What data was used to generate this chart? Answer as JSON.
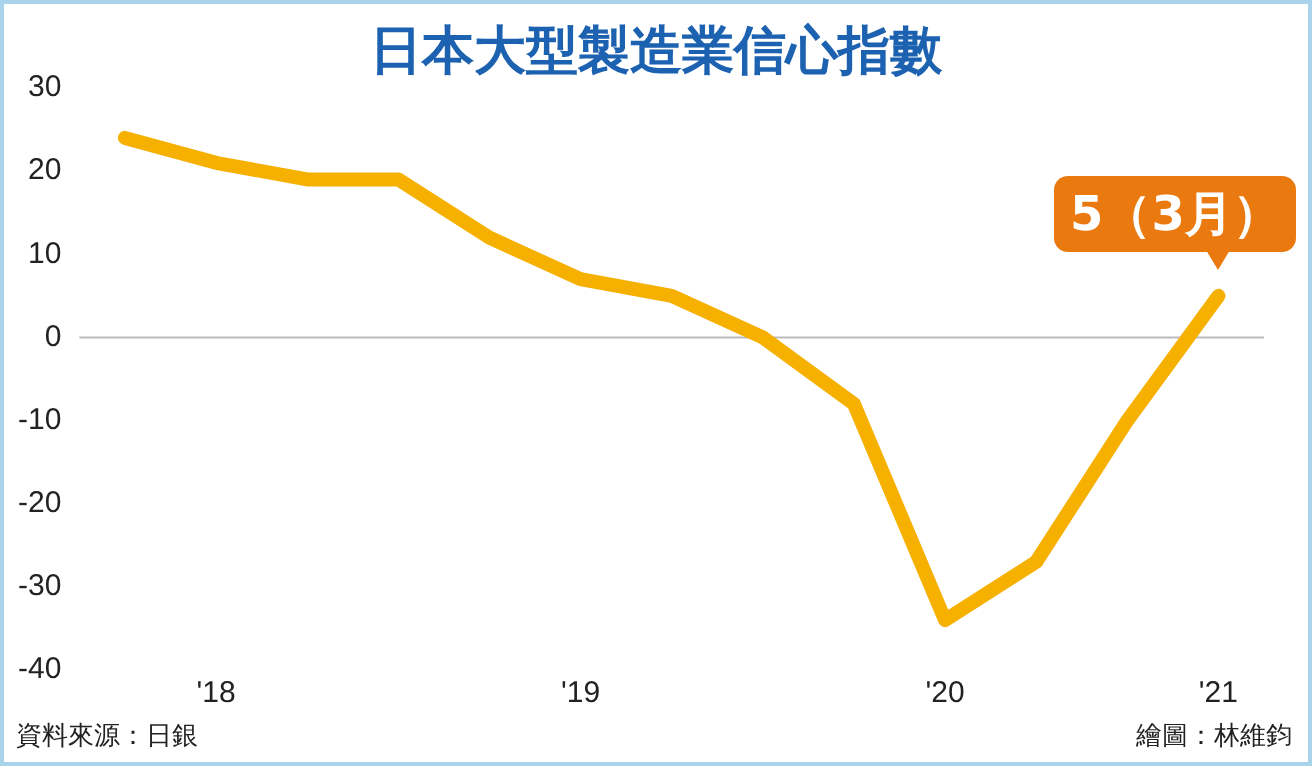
{
  "chart_data": {
    "type": "line",
    "title": "日本大型製造業信心指數",
    "categories": [
      null,
      "'18",
      null,
      null,
      null,
      "'19",
      null,
      null,
      null,
      "'20",
      null,
      null,
      "'21"
    ],
    "series": [
      {
        "color": "#f5b000",
        "values": [
          24,
          21,
          19,
          19,
          12,
          7,
          5,
          0,
          -8,
          -34,
          -27,
          -10,
          5
        ]
      }
    ],
    "ylim": [
      -40,
      30
    ],
    "yticks": [
      -40,
      -30,
      -20,
      -10,
      0,
      10,
      20,
      30
    ],
    "grid": false,
    "legend": false,
    "marker": "none",
    "line_style": "solid",
    "ref_lines": [
      {
        "axis": "y",
        "value": 0,
        "color": "#bbbbbb"
      }
    ],
    "annotations": [
      {
        "text": "5（3月）",
        "x": "'21",
        "y": 5
      },
      "資料來源：日銀",
      "繪圖：林維鈞"
    ]
  }
}
